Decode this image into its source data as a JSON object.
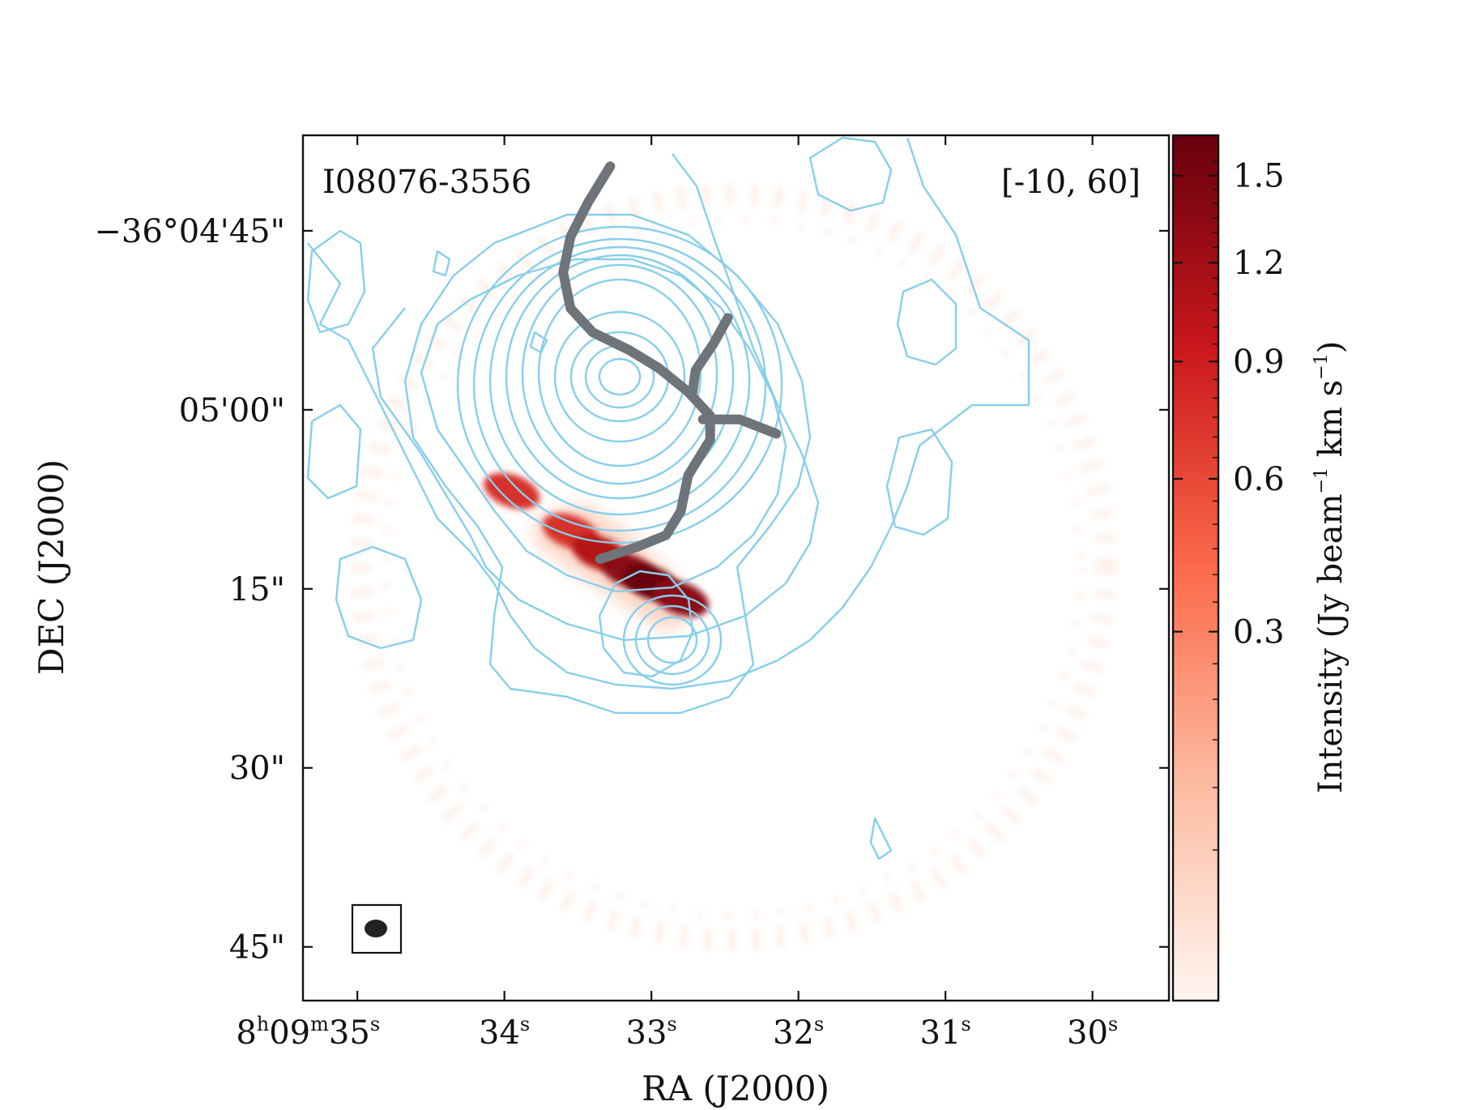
{
  "chart_data": {
    "type": "heatmap",
    "title": "I08076-3556",
    "subtitle": "[-10, 60]",
    "xlabel": "RA (J2000)",
    "ylabel": "DEC (J2000)",
    "colorbar_label": "Intensity (Jy beam^-1 km s^-1)",
    "colormap": "Reds",
    "contour_color": "#87ceeb",
    "skeleton_color": "#6e7479",
    "beam_color": "#222222",
    "x_ticks": [
      {
        "value": 35,
        "h": "8",
        "m": "09",
        "s": "35"
      },
      {
        "value": 34,
        "s": "34"
      },
      {
        "value": 33,
        "s": "33"
      },
      {
        "value": 32,
        "s": "32"
      },
      {
        "value": 31,
        "s": "31"
      },
      {
        "value": 30,
        "s": "30"
      }
    ],
    "y_ticks": [
      {
        "value": -45,
        "label": "−36°04'45\""
      },
      {
        "value": -60,
        "label": "05'00\""
      },
      {
        "value": -75,
        "label": "15\""
      },
      {
        "value": -90,
        "label": "30\""
      },
      {
        "value": -105,
        "label": "45\""
      }
    ],
    "xlim": [
      35.37,
      29.48
    ],
    "ylim": [
      -109.5,
      -37
    ],
    "colorbar_ticks": [
      1.5,
      1.2,
      0.9,
      0.6,
      0.3
    ],
    "colorbar_tick_labels": [
      "1.5",
      "1.2",
      "0.9",
      "0.6",
      "0.3"
    ],
    "emission_blobs": [
      {
        "ra": 33.95,
        "dec": -66.8,
        "peak": 0.8
      },
      {
        "ra": 33.55,
        "dec": -70.2,
        "peak": 0.7
      },
      {
        "ra": 33.35,
        "dec": -72.0,
        "peak": 0.9
      },
      {
        "ra": 33.15,
        "dec": -73.5,
        "peak": 1.2
      },
      {
        "ra": 33.0,
        "dec": -74.5,
        "peak": 1.5
      },
      {
        "ra": 32.8,
        "dec": -75.8,
        "peak": 1.1
      }
    ],
    "skeleton": [
      [
        [
          33.28,
          -39.6
        ],
        [
          33.43,
          -42.6
        ],
        [
          33.55,
          -45.5
        ],
        [
          33.6,
          -48.5
        ],
        [
          33.55,
          -51.5
        ],
        [
          33.4,
          -53.5
        ],
        [
          33.15,
          -55.0
        ],
        [
          32.95,
          -56.5
        ],
        [
          32.75,
          -58.5
        ],
        [
          32.6,
          -60.5
        ],
        [
          32.6,
          -62.5
        ],
        [
          32.75,
          -65.5
        ],
        [
          32.8,
          -68.5
        ],
        [
          32.9,
          -70.5
        ],
        [
          33.1,
          -71.5
        ],
        [
          33.35,
          -72.5
        ]
      ],
      [
        [
          32.48,
          -52.3
        ],
        [
          32.58,
          -54.5
        ],
        [
          32.7,
          -56.7
        ],
        [
          32.72,
          -58.5
        ]
      ],
      [
        [
          32.65,
          -60.8
        ],
        [
          32.4,
          -60.8
        ],
        [
          32.15,
          -62.0
        ]
      ]
    ]
  }
}
